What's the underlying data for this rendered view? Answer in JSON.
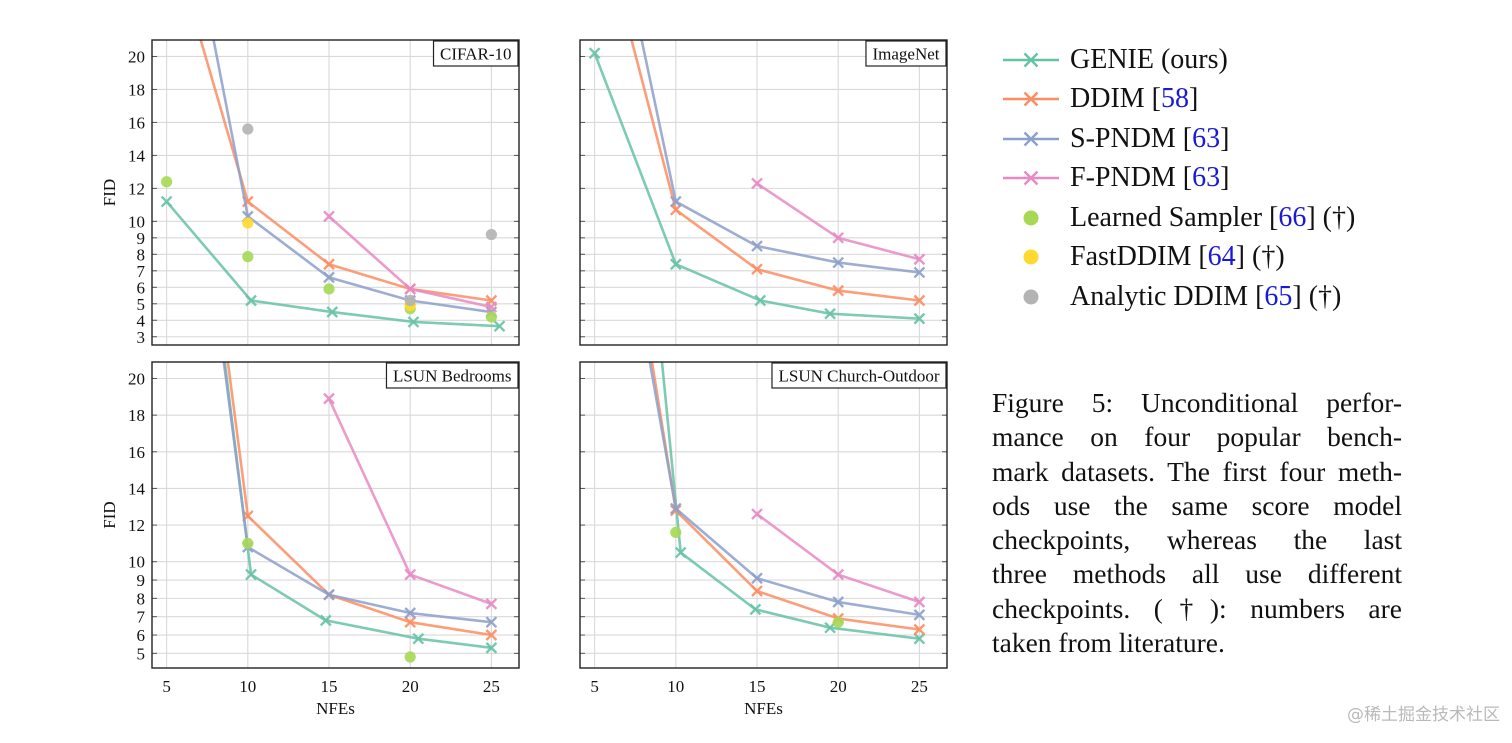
{
  "figure": {
    "caption_label": "Figure 5:",
    "caption_lines": [
      "Unconditional perfor-",
      "mance on four popular bench-",
      "mark datasets. The first four meth-",
      "ods use the same score model",
      "checkpoints, whereas the last",
      "three methods all use different",
      "checkpoints. (†): numbers are",
      "taken from literature."
    ],
    "watermark": "@稀土掘金技术社区"
  },
  "legend": [
    {
      "name": "GENIE (ours)",
      "text": "GENIE (ours)",
      "ref": "",
      "suffix": "",
      "kind": "line",
      "color": "#66c2a5"
    },
    {
      "name": "DDIM",
      "text": "DDIM [",
      "ref": "58",
      "suffix": "]",
      "kind": "line",
      "color": "#fc8d62"
    },
    {
      "name": "S-PNDM",
      "text": "S-PNDM [",
      "ref": "63",
      "suffix": "]",
      "kind": "line",
      "color": "#8da0cb"
    },
    {
      "name": "F-PNDM",
      "text": "F-PNDM [",
      "ref": "63",
      "suffix": "]",
      "kind": "line",
      "color": "#e78ac3"
    },
    {
      "name": "Learned Sampler",
      "text": "Learned Sampler [",
      "ref": "66",
      "suffix": "] (†)",
      "kind": "dot",
      "color": "#a6d854"
    },
    {
      "name": "FastDDIM",
      "text": "FastDDIM [",
      "ref": "64",
      "suffix": "] (†)",
      "kind": "dot",
      "color": "#ffd92f"
    },
    {
      "name": "Analytic DDIM",
      "text": "Analytic DDIM [",
      "ref": "65",
      "suffix": "] (†)",
      "kind": "dot",
      "color": "#b3b3b3"
    }
  ],
  "chart_data": [
    {
      "type": "line",
      "title": "CIFAR-10",
      "xlabel": "",
      "ylabel": "FID",
      "xlim": [
        4.1,
        26.7
      ],
      "ylim": [
        2.5,
        21
      ],
      "xticks": [
        5,
        10,
        15,
        20,
        25
      ],
      "yticks": [
        3,
        4,
        5,
        6,
        7,
        8,
        9,
        10,
        12,
        14,
        16,
        18,
        20
      ],
      "show_xtick_labels": false,
      "show_ytick_labels": true,
      "grid": true,
      "series": [
        {
          "name": "GENIE (ours)",
          "kind": "line",
          "points": [
            [
              5,
              11.2
            ],
            [
              10.2,
              5.2
            ],
            [
              15.2,
              4.5
            ],
            [
              20.2,
              3.9
            ],
            [
              25.5,
              3.64
            ]
          ]
        },
        {
          "name": "DDIM",
          "kind": "line",
          "points": [
            [
              5,
              28.1
            ],
            [
              10,
              11.2
            ],
            [
              15,
              7.4
            ],
            [
              20,
              5.9
            ],
            [
              25,
              5.2
            ]
          ]
        },
        {
          "name": "S-PNDM",
          "kind": "line",
          "points": [
            [
              5,
              35.7
            ],
            [
              10,
              10.3
            ],
            [
              15,
              6.6
            ],
            [
              20,
              5.2
            ],
            [
              25,
              4.5
            ]
          ]
        },
        {
          "name": "F-PNDM",
          "kind": "line",
          "points": [
            [
              15,
              10.3
            ],
            [
              20,
              5.9
            ],
            [
              25,
              4.8
            ]
          ]
        },
        {
          "name": "Learned Sampler",
          "kind": "dot",
          "points": [
            [
              5,
              12.4
            ],
            [
              10,
              7.86
            ],
            [
              15,
              5.9
            ],
            [
              20,
              4.7
            ],
            [
              25,
              4.2
            ]
          ]
        },
        {
          "name": "FastDDIM",
          "kind": "dot",
          "points": [
            [
              10,
              9.9
            ],
            [
              20,
              4.9
            ]
          ]
        },
        {
          "name": "Analytic DDIM",
          "kind": "dot",
          "points": [
            [
              10,
              15.6
            ],
            [
              20,
              5.2
            ],
            [
              25,
              9.2
            ]
          ]
        }
      ]
    },
    {
      "type": "line",
      "title": "ImageNet",
      "xlabel": "",
      "ylabel": "",
      "xlim": [
        4.1,
        26.7
      ],
      "ylim": [
        2.5,
        21
      ],
      "xticks": [
        5,
        10,
        15,
        20,
        25
      ],
      "yticks": [
        3,
        4,
        5,
        6,
        7,
        8,
        9,
        10,
        12,
        14,
        16,
        18,
        20
      ],
      "show_xtick_labels": false,
      "show_ytick_labels": false,
      "grid": true,
      "series": [
        {
          "name": "GENIE (ours)",
          "kind": "line",
          "points": [
            [
              5,
              20.2
            ],
            [
              10,
              7.4
            ],
            [
              15.2,
              5.2
            ],
            [
              19.5,
              4.4
            ],
            [
              25,
              4.1
            ]
          ]
        },
        {
          "name": "DDIM",
          "kind": "line",
          "points": [
            [
              5,
              29.6
            ],
            [
              10,
              10.7
            ],
            [
              15,
              7.1
            ],
            [
              20,
              5.8
            ],
            [
              25,
              5.2
            ]
          ]
        },
        {
          "name": "S-PNDM",
          "kind": "line",
          "points": [
            [
              5,
              34.5
            ],
            [
              10,
              11.2
            ],
            [
              15,
              8.5
            ],
            [
              20,
              7.5
            ],
            [
              25,
              6.9
            ]
          ]
        },
        {
          "name": "F-PNDM",
          "kind": "line",
          "points": [
            [
              15,
              12.3
            ],
            [
              20,
              9.0
            ],
            [
              25,
              7.7
            ]
          ]
        },
        {
          "name": "Learned Sampler",
          "kind": "dot",
          "points": []
        },
        {
          "name": "FastDDIM",
          "kind": "dot",
          "points": []
        },
        {
          "name": "Analytic DDIM",
          "kind": "dot",
          "points": []
        }
      ]
    },
    {
      "type": "line",
      "title": "LSUN Bedrooms",
      "xlabel": "NFEs",
      "ylabel": "FID",
      "xlim": [
        4.1,
        26.7
      ],
      "ylim": [
        4.2,
        20.9
      ],
      "xticks": [
        5,
        10,
        15,
        20,
        25
      ],
      "yticks": [
        5,
        6,
        7,
        8,
        9,
        10,
        12,
        14,
        16,
        18,
        20
      ],
      "show_xtick_labels": true,
      "show_ytick_labels": true,
      "grid": true,
      "series": [
        {
          "name": "GENIE (ours)",
          "kind": "line",
          "points": [
            [
              5,
              46.5
            ],
            [
              10.2,
              9.3
            ],
            [
              14.8,
              6.8
            ],
            [
              20.5,
              5.8
            ],
            [
              25,
              5.3
            ]
          ]
        },
        {
          "name": "DDIM",
          "kind": "line",
          "points": [
            [
              5,
              46.7
            ],
            [
              10,
              12.5
            ],
            [
              15,
              8.2
            ],
            [
              20,
              6.7
            ],
            [
              25,
              6.0
            ]
          ]
        },
        {
          "name": "S-PNDM",
          "kind": "line",
          "points": [
            [
              5,
              45.0
            ],
            [
              10,
              10.8
            ],
            [
              15,
              8.2
            ],
            [
              20,
              7.2
            ],
            [
              25,
              6.7
            ]
          ]
        },
        {
          "name": "F-PNDM",
          "kind": "line",
          "points": [
            [
              15,
              18.9
            ],
            [
              20,
              9.3
            ],
            [
              25,
              7.7
            ]
          ]
        },
        {
          "name": "Learned Sampler",
          "kind": "dot",
          "points": [
            [
              10,
              11.0
            ],
            [
              20,
              4.8
            ]
          ]
        },
        {
          "name": "FastDDIM",
          "kind": "dot",
          "points": []
        },
        {
          "name": "Analytic DDIM",
          "kind": "dot",
          "points": []
        }
      ]
    },
    {
      "type": "line",
      "title": "LSUN Church-Outdoor",
      "xlabel": "NFEs",
      "ylabel": "",
      "xlim": [
        4.1,
        26.7
      ],
      "ylim": [
        4.2,
        20.9
      ],
      "xticks": [
        5,
        10,
        15,
        20,
        25
      ],
      "yticks": [
        5,
        6,
        7,
        8,
        9,
        10,
        12,
        14,
        16,
        18,
        20
      ],
      "show_xtick_labels": true,
      "show_ytick_labels": false,
      "grid": true,
      "series": [
        {
          "name": "GENIE (ours)",
          "kind": "line",
          "points": [
            [
              5,
              58.4
            ],
            [
              10.3,
              10.5
            ],
            [
              14.9,
              7.4
            ],
            [
              19.5,
              6.4
            ],
            [
              25,
              5.8
            ]
          ]
        },
        {
          "name": "DDIM",
          "kind": "line",
          "points": [
            [
              5,
              40.4
            ],
            [
              10,
              12.8
            ],
            [
              15,
              8.4
            ],
            [
              20,
              6.9
            ],
            [
              25,
              6.3
            ]
          ]
        },
        {
          "name": "S-PNDM",
          "kind": "line",
          "points": [
            [
              5,
              37.9
            ],
            [
              10,
              12.9
            ],
            [
              15,
              9.1
            ],
            [
              20,
              7.8
            ],
            [
              25,
              7.1
            ]
          ]
        },
        {
          "name": "F-PNDM",
          "kind": "line",
          "points": [
            [
              15,
              12.6
            ],
            [
              20,
              9.3
            ],
            [
              25,
              7.8
            ]
          ]
        },
        {
          "name": "Learned Sampler",
          "kind": "dot",
          "points": [
            [
              10,
              11.6
            ],
            [
              20,
              6.7
            ]
          ]
        },
        {
          "name": "FastDDIM",
          "kind": "dot",
          "points": []
        },
        {
          "name": "Analytic DDIM",
          "kind": "dot",
          "points": []
        }
      ]
    }
  ]
}
